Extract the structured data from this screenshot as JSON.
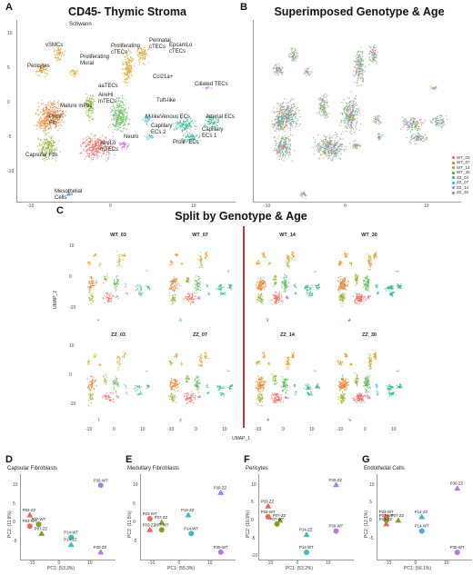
{
  "panels": {
    "A": {
      "letter": "A",
      "title": "CD45- Thymic Stroma"
    },
    "B": {
      "letter": "B",
      "title": "Superimposed Genotype & Age"
    },
    "C": {
      "letter": "C",
      "title": "Split by Genotype & Age",
      "xlabel": "UMAP_1",
      "ylabel": "UMAP_2"
    },
    "D": {
      "letter": "D",
      "title": "Capsular Fibroblasts"
    },
    "E": {
      "letter": "E",
      "title": "Medullary Fibroblasts"
    },
    "F": {
      "letter": "F",
      "title": "Pericytes"
    },
    "G": {
      "letter": "G",
      "title": "Endothelial Cells"
    }
  },
  "cluster_labels": [
    {
      "text": "Schwann"
    },
    {
      "text": "Perinatal\ncTECs"
    },
    {
      "text": "vSMCs"
    },
    {
      "text": "Proliferating\ncTECs"
    },
    {
      "text": "EpcamLo\ncTECs"
    },
    {
      "text": "Proliferating\nMural"
    },
    {
      "text": "Pericytes"
    },
    {
      "text": "Ccl21a+"
    },
    {
      "text": "aaTECs"
    },
    {
      "text": "Ciliated TECs"
    },
    {
      "text": "AireHi\nmTECs"
    },
    {
      "text": "Mature mFbs"
    },
    {
      "text": "Tuft-like"
    },
    {
      "text": "Venous ECs"
    },
    {
      "text": "Arterial ECs"
    },
    {
      "text": "Prolif-\nFib"
    },
    {
      "text": "M-like"
    },
    {
      "text": "Capillary\nECs 2"
    },
    {
      "text": "Capillary\nECs 1"
    },
    {
      "text": "Neuro"
    },
    {
      "text": "Prolif- ECs"
    },
    {
      "text": "AireLo\nmTECs"
    },
    {
      "text": "Capsular Fbs"
    },
    {
      "text": "Mesothelial\nCells"
    }
  ],
  "umap_ticks": {
    "A_y": [
      "10",
      "5",
      "0",
      "-5",
      "-10"
    ],
    "x": [
      "-10",
      "0",
      "10"
    ]
  },
  "legend": [
    {
      "label": "WT_03",
      "color": "#e8665a"
    },
    {
      "label": "WT_07",
      "color": "#c9852a"
    },
    {
      "label": "WT_14",
      "color": "#9aa331"
    },
    {
      "label": "WT_30",
      "color": "#3ea94a"
    },
    {
      "label": "ZZ_03",
      "color": "#37ad8e"
    },
    {
      "label": "ZZ_07",
      "color": "#2fb3c4"
    },
    {
      "label": "ZZ_14",
      "color": "#6e8fe3"
    },
    {
      "label": "ZZ_30",
      "color": "#c763d4"
    }
  ],
  "split_labels": {
    "row1": [
      "WT_03",
      "WT_07",
      "WT_14",
      "WT_30"
    ],
    "row2": [
      "ZZ_03",
      "ZZ_07",
      "ZZ_14",
      "ZZ_30"
    ]
  },
  "split_ticks": {
    "x": [
      "-10",
      "0",
      "10"
    ],
    "y": [
      "10",
      "0",
      "-10"
    ]
  },
  "chart_data": [
    {
      "type": "scatter",
      "title": "Capsular Fibroblasts",
      "xlabel": "PC1: (53.3%)",
      "ylabel": "PC2: (11.8%)",
      "points": [
        {
          "label": "P03-ZZ",
          "x": -11,
          "y": 2,
          "color": "#e8665a",
          "shape": "triangle"
        },
        {
          "label": "P03-WT",
          "x": -11,
          "y": -1,
          "color": "#e8665a",
          "shape": "circle"
        },
        {
          "label": "P07-WT",
          "x": -8,
          "y": -0.5,
          "color": "#8a9a2a",
          "shape": "circle"
        },
        {
          "label": "P07-ZZ",
          "x": -7,
          "y": -3,
          "color": "#8a9a2a",
          "shape": "triangle"
        },
        {
          "label": "P14-WT",
          "x": 3,
          "y": -4,
          "color": "#3fb8c0",
          "shape": "circle"
        },
        {
          "label": "P14-ZZ",
          "x": 3,
          "y": -6,
          "color": "#3fb8c0",
          "shape": "triangle"
        },
        {
          "label": "P30-WT",
          "x": 13,
          "y": 10,
          "color": "#b07ae0",
          "shape": "circle"
        },
        {
          "label": "P30-ZZ",
          "x": 13,
          "y": -8,
          "color": "#b07ae0",
          "shape": "triangle"
        }
      ],
      "xticks": [
        "-10",
        "0",
        "10"
      ],
      "yticks": [
        "10",
        "5",
        "0",
        "-5"
      ],
      "xlim": [
        -14,
        18
      ],
      "ylim": [
        -10,
        13
      ]
    },
    {
      "type": "scatter",
      "title": "Medullary Fibroblasts",
      "xlabel": "PC1: (55.3%)",
      "ylabel": "PC2: (11.5%)",
      "points": [
        {
          "label": "P03-WT",
          "x": -11,
          "y": 1,
          "color": "#e8665a",
          "shape": "circle"
        },
        {
          "label": "P03-ZZ",
          "x": -11,
          "y": -2,
          "color": "#e8665a",
          "shape": "triangle"
        },
        {
          "label": "P07-ZZ",
          "x": -7,
          "y": 0,
          "color": "#8a9a2a",
          "shape": "triangle"
        },
        {
          "label": "P07-WT",
          "x": -7,
          "y": -2,
          "color": "#8a9a2a",
          "shape": "circle"
        },
        {
          "label": "P14-ZZ",
          "x": 2,
          "y": 2,
          "color": "#3fb8c0",
          "shape": "triangle"
        },
        {
          "label": "P14-WT",
          "x": 3,
          "y": -3,
          "color": "#3fb8c0",
          "shape": "circle"
        },
        {
          "label": "P30-ZZ",
          "x": 13,
          "y": 8,
          "color": "#b07ae0",
          "shape": "triangle"
        },
        {
          "label": "P30-WT",
          "x": 13,
          "y": -8,
          "color": "#b07ae0",
          "shape": "circle"
        }
      ],
      "xticks": [
        "-10",
        "0",
        "10"
      ],
      "yticks": [
        "10",
        "5",
        "0",
        "-5"
      ],
      "xlim": [
        -14,
        18
      ],
      "ylim": [
        -10,
        13
      ]
    },
    {
      "type": "scatter",
      "title": "Pericytes",
      "xlabel": "PC1: (53.2%)",
      "ylabel": "PC2: (16.9%)",
      "points": [
        {
          "label": "P03-ZZ",
          "x": -11,
          "y": 4,
          "color": "#e8665a",
          "shape": "triangle"
        },
        {
          "label": "P03-WT",
          "x": -11,
          "y": 1,
          "color": "#e8665a",
          "shape": "circle"
        },
        {
          "label": "P07-ZZ",
          "x": -7,
          "y": 0,
          "color": "#8a9a2a",
          "shape": "triangle"
        },
        {
          "label": "P07-WT",
          "x": -8,
          "y": -1,
          "color": "#8a9a2a",
          "shape": "circle"
        },
        {
          "label": "P14-ZZ",
          "x": 2,
          "y": -4,
          "color": "#3fb8c0",
          "shape": "triangle"
        },
        {
          "label": "P14-WT",
          "x": 2,
          "y": -9,
          "color": "#3fb8c0",
          "shape": "circle"
        },
        {
          "label": "P30-ZZ",
          "x": 12,
          "y": 10,
          "color": "#b07ae0",
          "shape": "triangle"
        },
        {
          "label": "P30-WT",
          "x": 12,
          "y": -3,
          "color": "#b07ae0",
          "shape": "circle"
        }
      ],
      "xticks": [
        "-10",
        "0",
        "10"
      ],
      "yticks": [
        "10",
        "5",
        "0",
        "-5",
        "-10"
      ],
      "xlim": [
        -14,
        18
      ],
      "ylim": [
        -11,
        13
      ]
    },
    {
      "type": "scatter",
      "title": "Endothelial Cells",
      "xlabel": "PC1: (56.1%)",
      "ylabel": "PC2: (12.1%)",
      "points": [
        {
          "label": "P03-WT",
          "x": -11,
          "y": 1,
          "color": "#e8665a",
          "shape": "circle"
        },
        {
          "label": "P07-WT",
          "x": -11,
          "y": 0,
          "color": "#8a9a2a",
          "shape": "circle"
        },
        {
          "label": "P03-ZZ",
          "x": -11,
          "y": -1,
          "color": "#e8665a",
          "shape": "triangle"
        },
        {
          "label": "P07-ZZ",
          "x": -7,
          "y": 0,
          "color": "#8a9a2a",
          "shape": "triangle"
        },
        {
          "label": "P14-ZZ",
          "x": 1,
          "y": 1,
          "color": "#3fb8c0",
          "shape": "triangle"
        },
        {
          "label": "P14-WT",
          "x": 1,
          "y": -3,
          "color": "#3fb8c0",
          "shape": "circle"
        },
        {
          "label": "P30-ZZ",
          "x": 13,
          "y": 9,
          "color": "#b07ae0",
          "shape": "triangle"
        },
        {
          "label": "P30-WT",
          "x": 13,
          "y": -9,
          "color": "#b07ae0",
          "shape": "circle"
        }
      ],
      "xticks": [
        "-10",
        "0",
        "10"
      ],
      "yticks": [
        "10",
        "5",
        "0",
        "-5"
      ],
      "xlim": [
        -14,
        18
      ],
      "ylim": [
        -11,
        13
      ]
    }
  ]
}
